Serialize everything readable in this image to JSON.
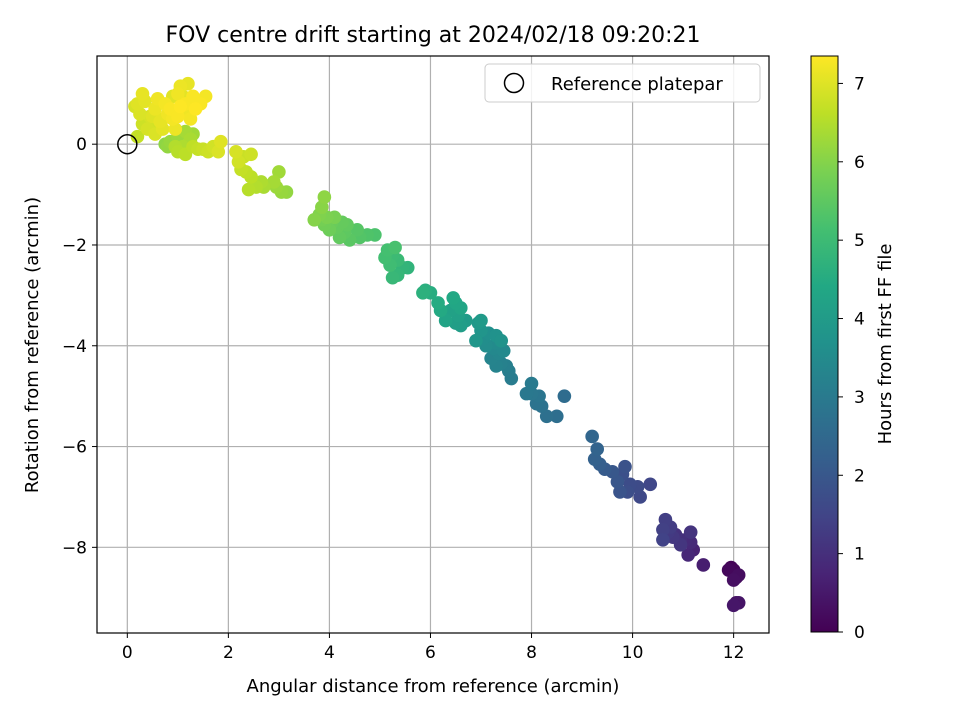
{
  "chart_data": {
    "type": "scatter",
    "title": "FOV centre drift starting at 2024/02/18 09:20:21",
    "xlabel": "Angular distance from reference (arcmin)",
    "ylabel": "Rotation from reference (arcmin)",
    "xlim": [
      -0.6,
      12.7
    ],
    "ylim": [
      -9.7,
      1.75
    ],
    "xticks": [
      0,
      2,
      4,
      6,
      8,
      10,
      12
    ],
    "yticks": [
      -8,
      -6,
      -4,
      -2,
      0
    ],
    "grid": true,
    "legend": {
      "position": "top-right",
      "entries": [
        "Reference platepar"
      ]
    },
    "reference_point": {
      "x": 0,
      "y": 0,
      "marker": "open-circle"
    },
    "colorbar": {
      "label": "Hours from first FF file",
      "colormap": "viridis",
      "range": [
        0,
        7.35
      ],
      "ticks": [
        0,
        1,
        2,
        3,
        4,
        5,
        6,
        7
      ]
    },
    "series_columns": [
      "x",
      "y",
      "hours"
    ],
    "points": [
      [
        11.95,
        -8.4,
        0.05
      ],
      [
        12.0,
        -8.45,
        0.1
      ],
      [
        11.9,
        -8.45,
        0.15
      ],
      [
        12.05,
        -8.6,
        0.2
      ],
      [
        12.1,
        -8.55,
        0.25
      ],
      [
        12.0,
        -8.65,
        0.3
      ],
      [
        12.05,
        -9.1,
        0.35
      ],
      [
        12.1,
        -9.1,
        0.4
      ],
      [
        12.0,
        -9.15,
        0.45
      ],
      [
        11.4,
        -8.35,
        0.6
      ],
      [
        11.2,
        -8.05,
        0.7
      ],
      [
        11.1,
        -8.15,
        0.8
      ],
      [
        11.15,
        -7.9,
        0.85
      ],
      [
        11.05,
        -7.85,
        0.9
      ],
      [
        10.95,
        -7.85,
        1.0
      ],
      [
        10.85,
        -7.75,
        1.05
      ],
      [
        11.15,
        -7.7,
        1.1
      ],
      [
        10.95,
        -7.95,
        1.15
      ],
      [
        10.8,
        -7.8,
        1.2
      ],
      [
        10.7,
        -7.7,
        1.25
      ],
      [
        10.75,
        -7.6,
        1.3
      ],
      [
        10.65,
        -7.45,
        1.35
      ],
      [
        10.6,
        -7.65,
        1.4
      ],
      [
        10.6,
        -7.85,
        1.45
      ],
      [
        10.35,
        -6.75,
        1.55
      ],
      [
        10.15,
        -7.0,
        1.6
      ],
      [
        10.1,
        -6.8,
        1.65
      ],
      [
        9.95,
        -6.75,
        1.7
      ],
      [
        9.9,
        -6.9,
        1.75
      ],
      [
        9.8,
        -6.55,
        1.8
      ],
      [
        9.85,
        -6.4,
        1.85
      ],
      [
        9.75,
        -6.9,
        1.9
      ],
      [
        9.7,
        -6.7,
        1.95
      ],
      [
        9.6,
        -6.5,
        2.0
      ],
      [
        9.45,
        -6.45,
        2.1
      ],
      [
        9.35,
        -6.35,
        2.2
      ],
      [
        9.25,
        -6.25,
        2.3
      ],
      [
        9.3,
        -6.05,
        2.35
      ],
      [
        9.2,
        -5.8,
        2.4
      ],
      [
        8.65,
        -5.0,
        2.6
      ],
      [
        8.5,
        -5.4,
        2.65
      ],
      [
        8.3,
        -5.4,
        2.7
      ],
      [
        8.2,
        -5.2,
        2.75
      ],
      [
        8.1,
        -5.15,
        2.8
      ],
      [
        8.15,
        -5.0,
        2.85
      ],
      [
        8.0,
        -4.95,
        2.9
      ],
      [
        7.9,
        -4.95,
        2.95
      ],
      [
        8.0,
        -4.75,
        3.0
      ],
      [
        7.6,
        -4.65,
        3.05
      ],
      [
        7.55,
        -4.5,
        3.1
      ],
      [
        7.5,
        -4.4,
        3.15
      ],
      [
        7.4,
        -4.35,
        3.2
      ],
      [
        7.3,
        -4.4,
        3.25
      ],
      [
        7.2,
        -4.25,
        3.3
      ],
      [
        7.35,
        -4.15,
        3.35
      ],
      [
        7.25,
        -4.05,
        3.4
      ],
      [
        7.45,
        -4.1,
        3.45
      ],
      [
        7.3,
        -3.95,
        3.5
      ],
      [
        7.1,
        -4.0,
        3.55
      ],
      [
        7.05,
        -3.85,
        3.6
      ],
      [
        7.15,
        -3.75,
        3.65
      ],
      [
        7.3,
        -3.8,
        3.7
      ],
      [
        7.4,
        -3.9,
        3.75
      ],
      [
        7.0,
        -3.7,
        3.8
      ],
      [
        6.9,
        -3.9,
        3.85
      ],
      [
        6.95,
        -3.55,
        3.9
      ],
      [
        7.0,
        -3.5,
        3.95
      ],
      [
        6.7,
        -3.5,
        4.0
      ],
      [
        6.6,
        -3.6,
        4.05
      ],
      [
        6.5,
        -3.55,
        4.1
      ],
      [
        6.55,
        -3.4,
        4.15
      ],
      [
        6.4,
        -3.3,
        4.2
      ],
      [
        6.3,
        -3.5,
        4.25
      ],
      [
        6.6,
        -3.25,
        4.3
      ],
      [
        6.5,
        -3.15,
        4.35
      ],
      [
        6.45,
        -3.05,
        4.4
      ],
      [
        6.2,
        -3.3,
        4.45
      ],
      [
        6.15,
        -3.15,
        4.5
      ],
      [
        6.0,
        -2.95,
        4.55
      ],
      [
        5.9,
        -2.9,
        4.6
      ],
      [
        5.85,
        -2.95,
        4.65
      ],
      [
        5.55,
        -2.45,
        4.75
      ],
      [
        5.45,
        -2.45,
        4.8
      ],
      [
        5.35,
        -2.6,
        4.85
      ],
      [
        5.25,
        -2.65,
        4.9
      ],
      [
        5.35,
        -2.3,
        4.95
      ],
      [
        5.25,
        -2.2,
        5.0
      ],
      [
        5.2,
        -2.4,
        5.05
      ],
      [
        5.1,
        -2.25,
        5.1
      ],
      [
        5.15,
        -2.1,
        5.15
      ],
      [
        5.3,
        -2.05,
        5.2
      ],
      [
        4.9,
        -1.8,
        5.25
      ],
      [
        4.75,
        -1.8,
        5.3
      ],
      [
        4.6,
        -1.85,
        5.35
      ],
      [
        4.55,
        -1.7,
        5.4
      ],
      [
        4.4,
        -1.9,
        5.45
      ],
      [
        4.3,
        -1.75,
        5.5
      ],
      [
        4.2,
        -1.85,
        5.55
      ],
      [
        4.15,
        -1.65,
        5.6
      ],
      [
        4.05,
        -1.55,
        5.65
      ],
      [
        4.0,
        -1.7,
        5.7
      ],
      [
        3.9,
        -1.6,
        5.75
      ],
      [
        3.85,
        -1.5,
        5.8
      ],
      [
        4.1,
        -1.45,
        5.85
      ],
      [
        3.95,
        -1.45,
        5.9
      ],
      [
        3.8,
        -1.4,
        5.95
      ],
      [
        3.7,
        -1.5,
        6.0
      ],
      [
        3.85,
        -1.25,
        6.05
      ],
      [
        3.9,
        -1.05,
        6.1
      ],
      [
        4.25,
        -1.55,
        5.6
      ],
      [
        4.35,
        -1.6,
        5.55
      ],
      [
        3.15,
        -0.95,
        6.15
      ],
      [
        3.05,
        -0.95,
        6.2
      ],
      [
        2.95,
        -0.85,
        6.25
      ],
      [
        3.0,
        -0.55,
        6.3
      ],
      [
        2.9,
        -0.75,
        6.35
      ],
      [
        2.7,
        -0.85,
        6.4
      ],
      [
        2.65,
        -0.75,
        6.45
      ],
      [
        2.55,
        -0.85,
        6.5
      ],
      [
        2.4,
        -0.9,
        6.55
      ],
      [
        2.45,
        -0.65,
        6.6
      ],
      [
        2.35,
        -0.55,
        6.65
      ],
      [
        2.25,
        -0.5,
        6.7
      ],
      [
        2.3,
        -0.25,
        6.75
      ],
      [
        2.45,
        -0.2,
        6.8
      ],
      [
        2.2,
        -0.35,
        6.85
      ],
      [
        2.15,
        -0.15,
        6.9
      ],
      [
        1.8,
        -0.15,
        6.95
      ],
      [
        1.85,
        0.05,
        7.0
      ],
      [
        1.7,
        -0.05,
        6.85
      ],
      [
        1.6,
        -0.15,
        6.8
      ],
      [
        1.5,
        -0.1,
        6.75
      ],
      [
        1.4,
        -0.1,
        6.7
      ],
      [
        1.3,
        -0.05,
        6.65
      ],
      [
        1.15,
        -0.2,
        6.6
      ],
      [
        1.0,
        -0.15,
        6.55
      ],
      [
        0.95,
        -0.05,
        6.5
      ],
      [
        1.1,
        -0.05,
        6.45
      ],
      [
        1.25,
        0.1,
        6.4
      ],
      [
        1.15,
        0.25,
        6.35
      ],
      [
        1.3,
        0.2,
        6.3
      ],
      [
        1.0,
        0.15,
        6.25
      ],
      [
        0.85,
        0.05,
        6.2
      ],
      [
        0.8,
        -0.05,
        6.15
      ],
      [
        0.75,
        0.0,
        6.1
      ],
      [
        0.2,
        0.15,
        6.7
      ],
      [
        0.3,
        0.4,
        6.8
      ],
      [
        0.5,
        0.35,
        6.85
      ],
      [
        0.45,
        0.55,
        6.9
      ],
      [
        0.25,
        0.6,
        6.95
      ],
      [
        0.2,
        0.8,
        7.0
      ],
      [
        0.35,
        0.85,
        7.05
      ],
      [
        0.3,
        1.0,
        7.1
      ],
      [
        0.55,
        0.7,
        7.15
      ],
      [
        0.6,
        0.9,
        7.2
      ],
      [
        0.7,
        0.5,
        7.1
      ],
      [
        0.8,
        0.6,
        7.2
      ],
      [
        0.75,
        0.8,
        7.25
      ],
      [
        0.85,
        0.7,
        7.3
      ],
      [
        0.9,
        0.5,
        7.25
      ],
      [
        1.0,
        0.55,
        7.3
      ],
      [
        1.05,
        0.75,
        7.35
      ],
      [
        1.15,
        0.8,
        7.3
      ],
      [
        1.2,
        0.6,
        7.2
      ],
      [
        1.3,
        0.95,
        7.3
      ],
      [
        1.35,
        0.7,
        7.35
      ],
      [
        1.45,
        0.8,
        7.3
      ],
      [
        1.55,
        0.95,
        7.25
      ],
      [
        1.0,
        1.0,
        7.2
      ],
      [
        1.05,
        1.15,
        7.15
      ],
      [
        1.2,
        1.2,
        7.1
      ],
      [
        1.1,
        0.95,
        7.05
      ],
      [
        0.9,
        0.95,
        7.0
      ],
      [
        0.65,
        0.45,
        7.1
      ],
      [
        0.4,
        0.3,
        6.9
      ],
      [
        0.55,
        0.2,
        6.95
      ],
      [
        0.7,
        0.3,
        7.05
      ],
      [
        0.95,
        0.3,
        7.15
      ],
      [
        1.25,
        0.5,
        7.25
      ],
      [
        0.5,
        0.55,
        7.0
      ],
      [
        0.15,
        0.75,
        6.9
      ]
    ]
  }
}
